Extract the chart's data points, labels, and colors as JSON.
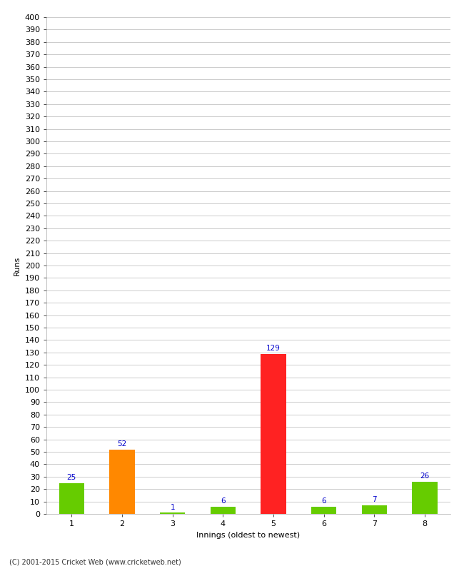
{
  "innings": [
    1,
    2,
    3,
    4,
    5,
    6,
    7,
    8
  ],
  "runs": [
    25,
    52,
    1,
    6,
    129,
    6,
    7,
    26
  ],
  "bar_colors": [
    "#66cc00",
    "#ff8800",
    "#66cc00",
    "#66cc00",
    "#ff2222",
    "#66cc00",
    "#66cc00",
    "#66cc00"
  ],
  "xlabel": "Innings (oldest to newest)",
  "ylabel": "Runs",
  "ylim": [
    0,
    400
  ],
  "yticks": [
    0,
    10,
    20,
    30,
    40,
    50,
    60,
    70,
    80,
    90,
    100,
    110,
    120,
    130,
    140,
    150,
    160,
    170,
    180,
    190,
    200,
    210,
    220,
    230,
    240,
    250,
    260,
    270,
    280,
    290,
    300,
    310,
    320,
    330,
    340,
    350,
    360,
    370,
    380,
    390,
    400
  ],
  "footer": "(C) 2001-2015 Cricket Web (www.cricketweb.net)",
  "value_color": "#0000cc",
  "value_fontsize": 7.5,
  "axis_fontsize": 8,
  "ylabel_fontsize": 8,
  "xlabel_fontsize": 8,
  "background_color": "#ffffff",
  "grid_color": "#cccccc",
  "bar_width": 0.5,
  "xlim": [
    0.5,
    8.5
  ]
}
